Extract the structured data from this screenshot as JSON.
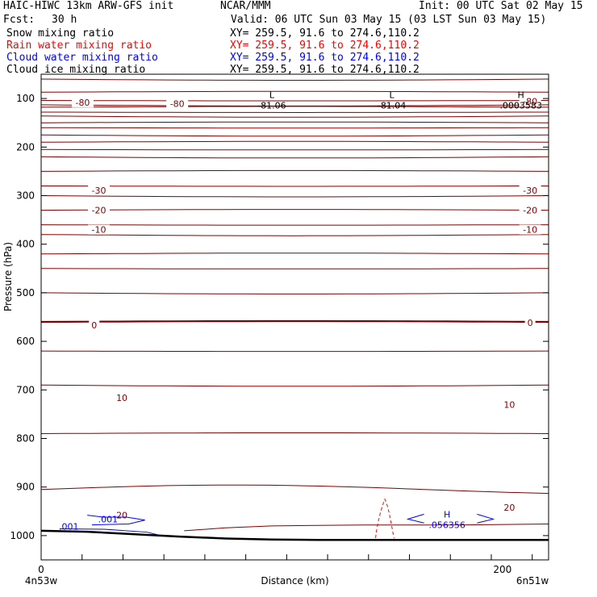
{
  "header": {
    "model": "HAIC-HIWC 13km ARW-GFS init",
    "org": "NCAR/MMM",
    "init": "Init: 00 UTC Sat 02 May 15",
    "fcst_label": "Fcst:",
    "fcst_value": "30 h",
    "valid": "Valid: 06 UTC Sun 03 May 15 (03 LST Sun 03 May 15)"
  },
  "fields": [
    {
      "name": "Snow mixing ratio",
      "xy": "XY= 259.5, 91.6 to 274.6,110.2",
      "color": "#000000"
    },
    {
      "name": "Rain water mixing ratio",
      "xy": "XY= 259.5, 91.6 to 274.6,110.2",
      "color": "#ff0000"
    },
    {
      "name": "Cloud water mixing ratio",
      "xy": "XY= 259.5, 91.6 to 274.6,110.2",
      "color": "#0000ff"
    },
    {
      "name": "Cloud ice mixing ratio",
      "xy": "XY= 259.5, 91.6 to 274.6,110.2",
      "color": "#000000"
    }
  ],
  "chart_data": {
    "type": "cross-section",
    "xlabel": "Distance (km)",
    "ylabel": "Pressure (hPa)",
    "xlim": [
      0,
      220
    ],
    "ylim": [
      1050,
      50
    ],
    "x_ticks": [
      0,
      200
    ],
    "y_ticks": [
      100,
      200,
      300,
      400,
      500,
      600,
      700,
      800,
      900,
      1000
    ],
    "left_endpoint": "4n53w",
    "right_endpoint": "6n51w",
    "temperature_color": "#800000",
    "temperature_isotherms": [
      {
        "value": "-80",
        "label_x": [
          18,
          59,
          212
        ]
      },
      {
        "value": "-30",
        "label_x": [
          25,
          212
        ]
      },
      {
        "value": "-20",
        "label_x": [
          25,
          212
        ]
      },
      {
        "value": "-10",
        "label_x": [
          25,
          212
        ]
      },
      {
        "value": "0",
        "label_x": [
          23,
          212
        ]
      },
      {
        "value": "10",
        "label_x": [
          35,
          203
        ]
      },
      {
        "value": "20",
        "label_x": [
          35,
          203
        ]
      }
    ],
    "extrema": [
      {
        "type": "L",
        "value": "-81.06",
        "x": 100,
        "p": 104
      },
      {
        "type": "L",
        "value": "-81.04",
        "x": 152,
        "p": 104
      },
      {
        "type": "H",
        "value": ".0003583",
        "x": 208,
        "p": 104
      },
      {
        "type": "H",
        "value": ".056356",
        "x": 176,
        "p": 968
      }
    ],
    "cloud_water_labels": [
      ".001",
      ".001"
    ],
    "terrain_p": [
      990,
      992,
      997,
      1002,
      1006,
      1008,
      1009,
      1009,
      1009,
      1009,
      1009,
      1009
    ],
    "terrain_x": [
      0,
      20,
      40,
      60,
      80,
      100,
      120,
      140,
      160,
      180,
      200,
      220
    ]
  }
}
